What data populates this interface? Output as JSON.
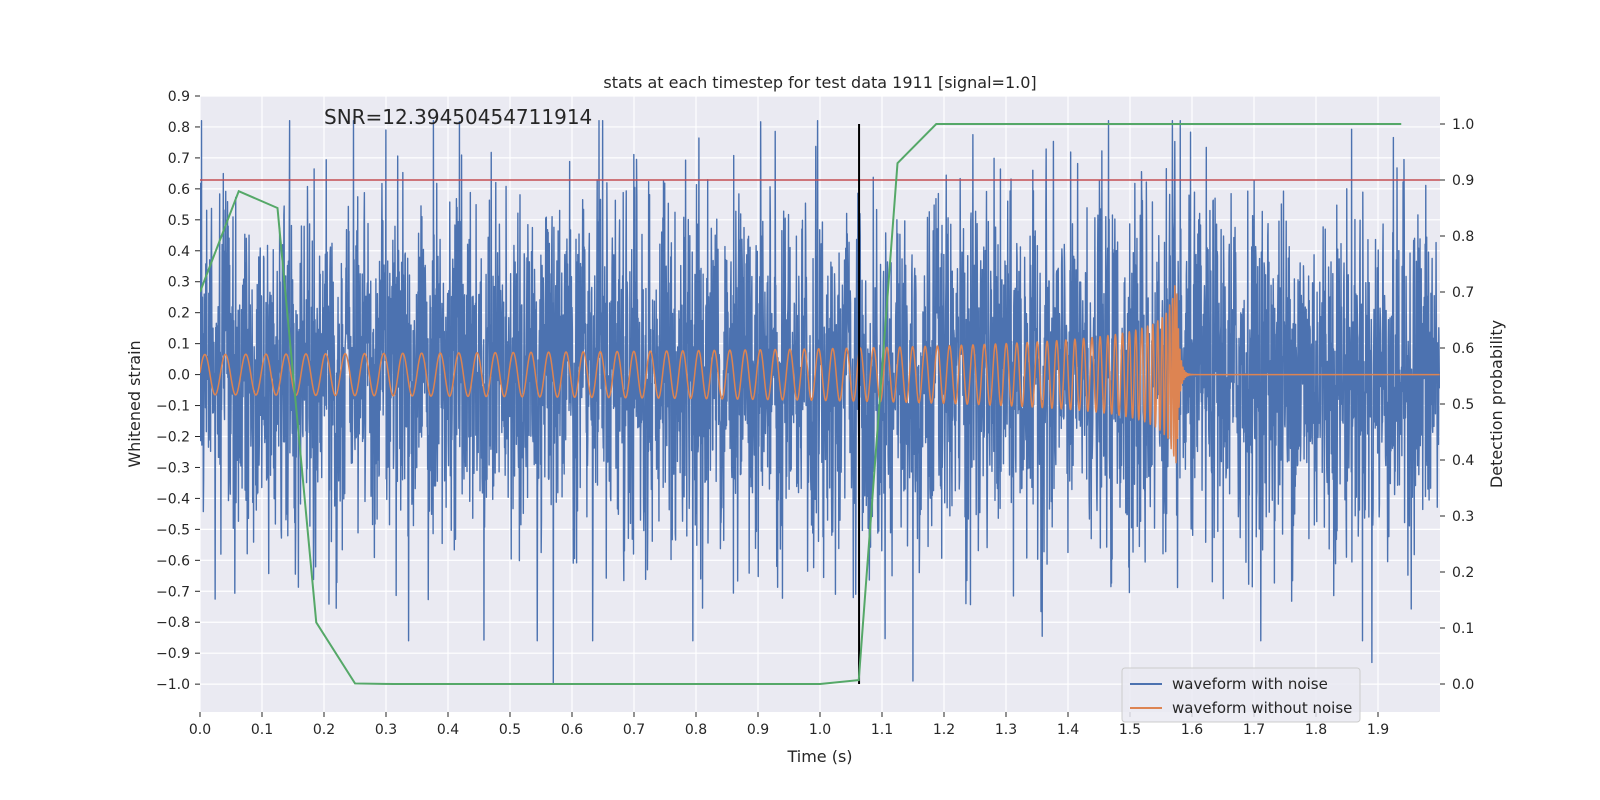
{
  "chart_data": {
    "type": "line",
    "title": "stats at each timestep for test data 1911 [signal=1.0]",
    "xlabel": "Time (s)",
    "ylabel": "Whitened strain",
    "ylabel_right": "Detection probability",
    "annotation": "SNR=12.39450454711914",
    "xlim": [
      0.0,
      2.0
    ],
    "ylim": [
      -1.09,
      0.9
    ],
    "ylim_right": [
      -0.05,
      1.05
    ],
    "xticks": [
      "0.0",
      "0.1",
      "0.2",
      "0.3",
      "0.4",
      "0.5",
      "0.6",
      "0.7",
      "0.8",
      "0.9",
      "1.0",
      "1.1",
      "1.2",
      "1.3",
      "1.4",
      "1.5",
      "1.6",
      "1.7",
      "1.8",
      "1.9"
    ],
    "yticks": [
      "0.9",
      "0.8",
      "0.7",
      "0.6",
      "0.5",
      "0.4",
      "0.3",
      "0.2",
      "0.1",
      "0.0",
      "-0.1",
      "-0.2",
      "-0.3",
      "-0.4",
      "-0.5",
      "-0.6",
      "-0.7",
      "-0.8",
      "-0.9",
      "-1.0"
    ],
    "yticks_right": [
      "1.0",
      "0.9",
      "0.8",
      "0.7",
      "0.6",
      "0.5",
      "0.4",
      "0.3",
      "0.2",
      "0.1",
      "0.0"
    ],
    "legend": {
      "placement": "lower-right",
      "entries": [
        "waveform with noise",
        "waveform without noise"
      ]
    },
    "threshold": {
      "axis": "right",
      "value": 0.9,
      "color": "#c44e52"
    },
    "merger_marker": {
      "x": 1.063,
      "y_right_range": [
        0.0,
        1.0
      ],
      "color": "#000000"
    },
    "noise_waveform": {
      "color": "#4c72b0",
      "sample_rate": 2048,
      "duration": 2.0,
      "noise_amplitude": 0.28,
      "notable_spikes": [
        {
          "x": 0.57,
          "y": -1.0
        },
        {
          "x": 1.15,
          "y": -0.99
        },
        {
          "x": 1.89,
          "y": -0.93
        },
        {
          "x": 0.3,
          "y": 0.79
        }
      ]
    },
    "clean_waveform": {
      "color": "#dd8452",
      "t_merge": 1.575,
      "amplitude_start": 0.065,
      "amplitude_peak": 0.33,
      "freq_start": 30
    },
    "series": [
      {
        "name": "detection probability",
        "axis": "right",
        "color": "#55a868",
        "x": [
          0.0,
          0.0625,
          0.125,
          0.1875,
          0.25,
          0.3125,
          1.0,
          1.0625,
          1.125,
          1.1875,
          1.9375
        ],
        "values": [
          0.7,
          0.88,
          0.85,
          0.11,
          0.001,
          0.0,
          0.0,
          0.007,
          0.93,
          1.0,
          1.0
        ]
      }
    ]
  }
}
